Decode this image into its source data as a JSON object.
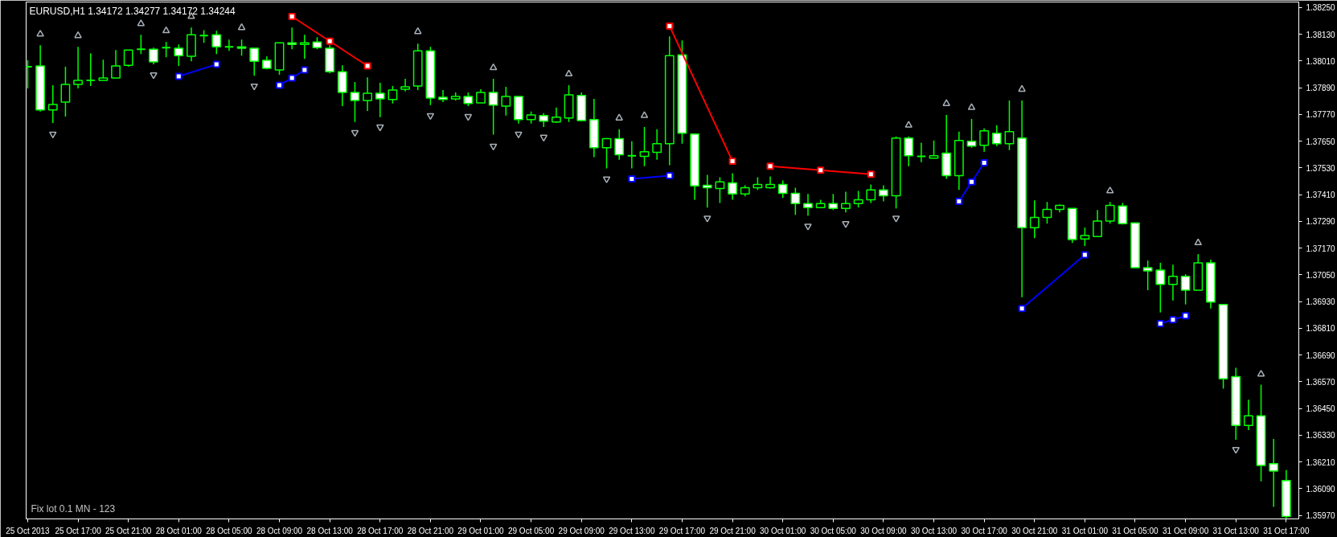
{
  "chart_data": {
    "type": "candlestick",
    "title": "EURUSD,H1  1.34172 1.34277 1.34172 1.34244",
    "annotations": [
      "Fix lot 0.1 MN - 123"
    ],
    "categories": [
      "25 Oct 2013",
      null,
      null,
      null,
      "25 Oct 17:00",
      null,
      null,
      null,
      "25 Oct 21:00",
      null,
      null,
      null,
      "28 Oct 01:00",
      null,
      null,
      null,
      "28 Oct 05:00",
      null,
      null,
      null,
      "28 Oct 09:00",
      null,
      null,
      null,
      "28 Oct 13:00",
      null,
      null,
      null,
      "28 Oct 17:00",
      null,
      null,
      null,
      "28 Oct 21:00",
      null,
      null,
      null,
      "29 Oct 01:00",
      null,
      null,
      null,
      "29 Oct 05:00",
      null,
      null,
      null,
      "29 Oct 09:00",
      null,
      null,
      null,
      "29 Oct 13:00",
      null,
      null,
      null,
      "29 Oct 17:00",
      null,
      null,
      null,
      "29 Oct 21:00",
      null,
      null,
      null,
      "30 Oct 01:00",
      null,
      null,
      null,
      "30 Oct 05:00",
      null,
      null,
      null,
      "30 Oct 09:00",
      null,
      null,
      null,
      "30 Oct 13:00",
      null,
      null,
      null,
      "30 Oct 17:00",
      null,
      null,
      null,
      "30 Oct 21:00",
      null,
      null,
      null,
      "31 Oct 01:00",
      null,
      null,
      null,
      "31 Oct 05:00",
      null,
      null,
      null,
      "31 Oct 09:00",
      null,
      null,
      null,
      "31 Oct 13:00",
      null,
      null,
      null,
      "31 Oct 17:00"
    ],
    "ylim": [
      1.35954,
      1.38275
    ],
    "yticks": [
      {
        "value": 1.3825,
        "label": "1.38250"
      },
      {
        "value": 1.3813,
        "label": "1.38130"
      },
      {
        "value": 1.3801,
        "label": "1.38010"
      },
      {
        "value": 1.3789,
        "label": "1.37890"
      },
      {
        "value": 1.3777,
        "label": "1.37770"
      },
      {
        "value": 1.3765,
        "label": "1.37650"
      },
      {
        "value": 1.3753,
        "label": "1.37530"
      },
      {
        "value": 1.3741,
        "label": "1.37410"
      },
      {
        "value": 1.3729,
        "label": "1.37290"
      },
      {
        "value": 1.3717,
        "label": "1.37170"
      },
      {
        "value": 1.3705,
        "label": "1.37050"
      },
      {
        "value": 1.3693,
        "label": "1.36930"
      },
      {
        "value": 1.3681,
        "label": "1.36810"
      },
      {
        "value": 1.3669,
        "label": "1.36690"
      },
      {
        "value": 1.3657,
        "label": "1.36570"
      },
      {
        "value": 1.3645,
        "label": "1.36450"
      },
      {
        "value": 1.3633,
        "label": "1.36330"
      },
      {
        "value": 1.3621,
        "label": "1.36210"
      },
      {
        "value": 1.3609,
        "label": "1.36090"
      },
      {
        "value": 1.3597,
        "label": "1.35970"
      }
    ],
    "series": [
      {
        "color": "#00ff00",
        "ohlc": [
          [
            1.37984,
            1.38013,
            1.37887,
            1.37984
          ],
          [
            1.37988,
            1.38081,
            1.37783,
            1.3779
          ],
          [
            1.3779,
            1.37901,
            1.37732,
            1.37815
          ],
          [
            1.37826,
            1.37984,
            1.37761,
            1.37905
          ],
          [
            1.37905,
            1.38074,
            1.37887,
            1.37923
          ],
          [
            1.37923,
            1.38045,
            1.37898,
            1.37923
          ],
          [
            1.37923,
            1.38016,
            1.37923,
            1.37934
          ],
          [
            1.37934,
            1.38059,
            1.37934,
            1.37988
          ],
          [
            1.37991,
            1.38059,
            1.37984,
            1.38059
          ],
          [
            1.38063,
            1.38128,
            1.38041,
            1.38063
          ],
          [
            1.38063,
            1.3807,
            1.37995,
            1.38006
          ],
          [
            1.3807,
            1.38095,
            1.38027,
            1.3807
          ],
          [
            1.38067,
            1.38085,
            1.37988,
            1.38034
          ],
          [
            1.38031,
            1.3816,
            1.38009,
            1.38128
          ],
          [
            1.38124,
            1.38149,
            1.38092,
            1.38124
          ],
          [
            1.38128,
            1.38146,
            1.38041,
            1.38074
          ],
          [
            1.38074,
            1.38106,
            1.38056,
            1.38074
          ],
          [
            1.38074,
            1.38106,
            1.38034,
            1.38067
          ],
          [
            1.38067,
            1.38067,
            1.37944,
            1.38009
          ],
          [
            1.38013,
            1.38031,
            1.37973,
            1.37977
          ],
          [
            1.3797,
            1.38092,
            1.37948,
            1.38092
          ],
          [
            1.38092,
            1.3816,
            1.38063,
            1.38085
          ],
          [
            1.38085,
            1.38128,
            1.3802,
            1.38092
          ],
          [
            1.38095,
            1.38117,
            1.38063,
            1.3807
          ],
          [
            1.38067,
            1.38081,
            1.37955,
            1.37962
          ],
          [
            1.37962,
            1.37991,
            1.37808,
            1.37869
          ],
          [
            1.37869,
            1.37916,
            1.37736,
            1.37833
          ],
          [
            1.37833,
            1.37937,
            1.37786,
            1.37865
          ],
          [
            1.37865,
            1.37912,
            1.37758,
            1.3784
          ],
          [
            1.37837,
            1.37898,
            1.37819,
            1.3788
          ],
          [
            1.37883,
            1.3793,
            1.37873,
            1.37894
          ],
          [
            1.37898,
            1.38088,
            1.3788,
            1.38056
          ],
          [
            1.38056,
            1.38074,
            1.37812,
            1.37844
          ],
          [
            1.37847,
            1.3788,
            1.37826,
            1.37837
          ],
          [
            1.3784,
            1.37869,
            1.37833,
            1.37851
          ],
          [
            1.37851,
            1.37869,
            1.37808,
            1.37819
          ],
          [
            1.37822,
            1.37883,
            1.37822,
            1.37869
          ],
          [
            1.37869,
            1.3793,
            1.37679,
            1.37812
          ],
          [
            1.37808,
            1.37894,
            1.37765,
            1.37851
          ],
          [
            1.37851,
            1.37851,
            1.37729,
            1.37747
          ],
          [
            1.37747,
            1.37783,
            1.37729,
            1.37768
          ],
          [
            1.37765,
            1.37776,
            1.37714,
            1.3774
          ],
          [
            1.37736,
            1.37801,
            1.37732,
            1.37758
          ],
          [
            1.37754,
            1.37901,
            1.37736,
            1.37858
          ],
          [
            1.37855,
            1.37869,
            1.3774,
            1.37743
          ],
          [
            1.37747,
            1.3784,
            1.37578,
            1.37621
          ],
          [
            1.37621,
            1.37664,
            1.37528,
            1.37661
          ],
          [
            1.37661,
            1.37704,
            1.37567,
            1.37589
          ],
          [
            1.37585,
            1.3765,
            1.37528,
            1.37585
          ],
          [
            1.37582,
            1.37714,
            1.37538,
            1.37603
          ],
          [
            1.376,
            1.37704,
            1.37567,
            1.37639
          ],
          [
            1.37639,
            1.38121,
            1.37542,
            1.38034
          ],
          [
            1.38038,
            1.38103,
            1.37639,
            1.37686
          ],
          [
            1.37682,
            1.37686,
            1.37387,
            1.37449
          ],
          [
            1.37452,
            1.37499,
            1.37352,
            1.37441
          ],
          [
            1.37438,
            1.37488,
            1.37373,
            1.37467
          ],
          [
            1.37463,
            1.37506,
            1.37387,
            1.37413
          ],
          [
            1.37413,
            1.37452,
            1.37402,
            1.37441
          ],
          [
            1.37441,
            1.37488,
            1.37431,
            1.37456
          ],
          [
            1.37441,
            1.37492,
            1.37438,
            1.37456
          ],
          [
            1.37456,
            1.37474,
            1.37395,
            1.37416
          ],
          [
            1.37416,
            1.37441,
            1.37319,
            1.3737
          ],
          [
            1.3737,
            1.37413,
            1.37316,
            1.37352
          ],
          [
            1.37352,
            1.37387,
            1.37352,
            1.3737
          ],
          [
            1.3737,
            1.37413,
            1.37341,
            1.37348
          ],
          [
            1.37348,
            1.37423,
            1.3733,
            1.3737
          ],
          [
            1.3737,
            1.37427,
            1.37352,
            1.37387
          ],
          [
            1.37387,
            1.37456,
            1.37373,
            1.37431
          ],
          [
            1.37431,
            1.37452,
            1.3738,
            1.37405
          ],
          [
            1.37405,
            1.37671,
            1.37348,
            1.37664
          ],
          [
            1.37664,
            1.37671,
            1.37538,
            1.37585
          ],
          [
            1.37582,
            1.37643,
            1.37556,
            1.37582
          ],
          [
            1.37574,
            1.37653,
            1.37574,
            1.37585
          ],
          [
            1.37596,
            1.37768,
            1.37481,
            1.37495
          ],
          [
            1.37495,
            1.37693,
            1.37431,
            1.37653
          ],
          [
            1.3765,
            1.3775,
            1.37621,
            1.37628
          ],
          [
            1.37632,
            1.37707,
            1.37603,
            1.37697
          ],
          [
            1.37686,
            1.37722,
            1.37628,
            1.37639
          ],
          [
            1.37639,
            1.37833,
            1.3761,
            1.37693
          ],
          [
            1.37664,
            1.37833,
            1.36949,
            1.37262
          ],
          [
            1.37262,
            1.37384,
            1.37215,
            1.37308
          ],
          [
            1.37308,
            1.37377,
            1.3728,
            1.37344
          ],
          [
            1.37344,
            1.37366,
            1.3733,
            1.37362
          ],
          [
            1.37348,
            1.37348,
            1.37193,
            1.37208
          ],
          [
            1.37211,
            1.37262,
            1.37179,
            1.37226
          ],
          [
            1.37222,
            1.37341,
            1.37222,
            1.37291
          ],
          [
            1.37291,
            1.37377,
            1.3728,
            1.37362
          ],
          [
            1.37359,
            1.37373,
            1.37276,
            1.3728
          ],
          [
            1.37283,
            1.37283,
            1.37082,
            1.37082
          ],
          [
            1.37082,
            1.37114,
            1.36981,
            1.37068
          ],
          [
            1.37071,
            1.37104,
            1.36881,
            1.37007
          ],
          [
            1.37007,
            1.37096,
            1.36935,
            1.37043
          ],
          [
            1.37043,
            1.37053,
            1.36917,
            1.36981
          ],
          [
            1.36981,
            1.37143,
            1.36981,
            1.37104
          ],
          [
            1.37104,
            1.37118,
            1.36899,
            1.36928
          ],
          [
            1.36917,
            1.36917,
            1.36539,
            1.36583
          ],
          [
            1.36593,
            1.36633,
            1.3631,
            1.36374
          ],
          [
            1.36374,
            1.36489,
            1.36353,
            1.36417
          ],
          [
            1.36417,
            1.36557,
            1.36123,
            1.36194
          ],
          [
            1.36202,
            1.36313,
            1.36008,
            1.36169
          ],
          [
            1.36126,
            1.36173,
            1.35957,
            1.35965
          ]
        ]
      },
      {
        "type": "line",
        "color": "#ff0000",
        "marker": "square",
        "values": [
          null,
          null,
          null,
          null,
          null,
          null,
          null,
          null,
          null,
          null,
          null,
          null,
          null,
          null,
          null,
          null,
          null,
          null,
          null,
          null,
          null,
          1.3821,
          null,
          null,
          1.38099,
          null,
          null,
          1.37988,
          null,
          null,
          null,
          null,
          null,
          null,
          null,
          null,
          null,
          null,
          null,
          null,
          null,
          null,
          null,
          null,
          null,
          null,
          null,
          null,
          null,
          null,
          null,
          null,
          null,
          null,
          null,
          null,
          null,
          null,
          null,
          null,
          null,
          null,
          null,
          null,
          null,
          null,
          null,
          null,
          null,
          null,
          null,
          null,
          null,
          null,
          null,
          null,
          null,
          null,
          null,
          null,
          null,
          null,
          null,
          null,
          null,
          null,
          null,
          null,
          null,
          null,
          null,
          null,
          null,
          null,
          null,
          null,
          null,
          null,
          null,
          null,
          null
        ]
      },
      {
        "type": "line",
        "color": "#ff0000",
        "marker": "square",
        "values": [
          null,
          null,
          null,
          null,
          null,
          null,
          null,
          null,
          null,
          null,
          null,
          null,
          null,
          null,
          null,
          null,
          null,
          null,
          null,
          null,
          null,
          null,
          null,
          null,
          null,
          null,
          null,
          null,
          null,
          null,
          null,
          null,
          null,
          null,
          null,
          null,
          null,
          null,
          null,
          null,
          null,
          null,
          null,
          null,
          null,
          null,
          null,
          null,
          null,
          null,
          null,
          1.38167,
          null,
          null,
          null,
          null,
          1.3756,
          null,
          null,
          null,
          null,
          null,
          null,
          null,
          null,
          null,
          null,
          null,
          null,
          null,
          null,
          null,
          null,
          null,
          null,
          null,
          null,
          null,
          null,
          null,
          null,
          null,
          null,
          null,
          null,
          null,
          null,
          null,
          null,
          null,
          null,
          null,
          null,
          null,
          null,
          null,
          null,
          null,
          null,
          null,
          null
        ]
      },
      {
        "type": "line",
        "color": "#ff0000",
        "marker": "square",
        "values": [
          null,
          null,
          null,
          null,
          null,
          null,
          null,
          null,
          null,
          null,
          null,
          null,
          null,
          null,
          null,
          null,
          null,
          null,
          null,
          null,
          null,
          null,
          null,
          null,
          null,
          null,
          null,
          null,
          null,
          null,
          null,
          null,
          null,
          null,
          null,
          null,
          null,
          null,
          null,
          null,
          null,
          null,
          null,
          null,
          null,
          null,
          null,
          null,
          null,
          null,
          null,
          null,
          null,
          null,
          null,
          null,
          null,
          null,
          null,
          1.37538,
          null,
          null,
          null,
          1.3752,
          null,
          null,
          null,
          1.37502,
          null,
          null,
          null,
          null,
          null,
          null,
          null,
          null,
          null,
          null,
          null,
          null,
          null,
          null,
          null,
          null,
          null,
          null,
          null,
          null,
          null,
          null,
          null,
          null,
          null,
          null,
          null,
          null,
          null,
          null,
          null,
          null,
          null
        ]
      },
      {
        "type": "line",
        "color": "#0000ff",
        "marker": "square",
        "values": [
          null,
          null,
          null,
          null,
          null,
          null,
          null,
          null,
          null,
          null,
          null,
          null,
          1.37941,
          null,
          null,
          1.37995,
          null,
          null,
          null,
          null,
          null,
          null,
          null,
          null,
          null,
          null,
          null,
          null,
          null,
          null,
          null,
          null,
          null,
          null,
          null,
          null,
          null,
          null,
          null,
          null,
          null,
          null,
          null,
          null,
          null,
          null,
          null,
          null,
          null,
          null,
          null,
          null,
          null,
          null,
          null,
          null,
          null,
          null,
          null,
          null,
          null,
          null,
          null,
          null,
          null,
          null,
          null,
          null,
          null,
          null,
          null,
          null,
          null,
          null,
          null,
          null,
          null,
          null,
          null,
          null,
          null,
          null,
          null,
          null,
          null,
          null,
          null,
          null,
          null,
          null,
          null,
          null,
          null,
          null,
          null,
          null,
          null,
          null,
          null,
          null,
          null
        ]
      },
      {
        "type": "line",
        "color": "#0000ff",
        "marker": "square",
        "values": [
          null,
          null,
          null,
          null,
          null,
          null,
          null,
          null,
          null,
          null,
          null,
          null,
          null,
          null,
          null,
          null,
          null,
          null,
          null,
          null,
          1.37901,
          1.37934,
          1.3797,
          null,
          null,
          null,
          null,
          null,
          null,
          null,
          null,
          null,
          null,
          null,
          null,
          null,
          null,
          null,
          null,
          null,
          null,
          null,
          null,
          null,
          null,
          null,
          null,
          null,
          null,
          null,
          null,
          null,
          null,
          null,
          null,
          null,
          null,
          null,
          null,
          null,
          null,
          null,
          null,
          null,
          null,
          null,
          null,
          null,
          null,
          null,
          null,
          null,
          null,
          null,
          null,
          null,
          null,
          null,
          null,
          null,
          null,
          null,
          null,
          null,
          null,
          null,
          null,
          null,
          null,
          null,
          null,
          null,
          null,
          null,
          null,
          null,
          null,
          null,
          null,
          null,
          null
        ]
      },
      {
        "type": "line",
        "color": "#0000ff",
        "marker": "square",
        "values": [
          null,
          null,
          null,
          null,
          null,
          null,
          null,
          null,
          null,
          null,
          null,
          null,
          null,
          null,
          null,
          null,
          null,
          null,
          null,
          null,
          null,
          null,
          null,
          null,
          null,
          null,
          null,
          null,
          null,
          null,
          null,
          null,
          null,
          null,
          null,
          null,
          null,
          null,
          null,
          null,
          null,
          null,
          null,
          null,
          null,
          null,
          null,
          null,
          1.37481,
          null,
          null,
          1.37495,
          null,
          null,
          null,
          null,
          null,
          null,
          null,
          null,
          null,
          null,
          null,
          null,
          null,
          null,
          null,
          null,
          null,
          null,
          null,
          null,
          null,
          null,
          null,
          null,
          null,
          null,
          null,
          null,
          null,
          null,
          null,
          null,
          null,
          null,
          null,
          null,
          null,
          null,
          null,
          null,
          null,
          null,
          null,
          null,
          null,
          null,
          null,
          null,
          null
        ]
      },
      {
        "type": "line",
        "color": "#0000ff",
        "marker": "square",
        "values": [
          null,
          null,
          null,
          null,
          null,
          null,
          null,
          null,
          null,
          null,
          null,
          null,
          null,
          null,
          null,
          null,
          null,
          null,
          null,
          null,
          null,
          null,
          null,
          null,
          null,
          null,
          null,
          null,
          null,
          null,
          null,
          null,
          null,
          null,
          null,
          null,
          null,
          null,
          null,
          null,
          null,
          null,
          null,
          null,
          null,
          null,
          null,
          null,
          null,
          null,
          null,
          null,
          null,
          null,
          null,
          null,
          null,
          null,
          null,
          null,
          null,
          null,
          null,
          null,
          null,
          null,
          null,
          null,
          null,
          null,
          null,
          null,
          null,
          null,
          1.3738,
          1.37467,
          1.37553,
          null,
          null,
          null,
          null,
          null,
          null,
          null,
          null,
          null,
          null,
          null,
          null,
          null,
          null,
          null,
          null,
          null,
          null,
          null,
          null,
          null,
          null,
          null,
          null
        ]
      },
      {
        "type": "line",
        "color": "#0000ff",
        "marker": "square",
        "values": [
          null,
          null,
          null,
          null,
          null,
          null,
          null,
          null,
          null,
          null,
          null,
          null,
          null,
          null,
          null,
          null,
          null,
          null,
          null,
          null,
          null,
          null,
          null,
          null,
          null,
          null,
          null,
          null,
          null,
          null,
          null,
          null,
          null,
          null,
          null,
          null,
          null,
          null,
          null,
          null,
          null,
          null,
          null,
          null,
          null,
          null,
          null,
          null,
          null,
          null,
          null,
          null,
          null,
          null,
          null,
          null,
          null,
          null,
          null,
          null,
          null,
          null,
          null,
          null,
          null,
          null,
          null,
          null,
          null,
          null,
          null,
          null,
          null,
          null,
          null,
          null,
          null,
          null,
          null,
          1.36899,
          null,
          null,
          null,
          null,
          1.3714,
          null,
          null,
          null,
          null,
          null,
          null,
          null,
          null,
          null,
          null,
          null,
          null,
          null,
          null,
          null,
          null
        ]
      },
      {
        "type": "line",
        "color": "#0000ff",
        "marker": "square",
        "values": [
          null,
          null,
          null,
          null,
          null,
          null,
          null,
          null,
          null,
          null,
          null,
          null,
          null,
          null,
          null,
          null,
          null,
          null,
          null,
          null,
          null,
          null,
          null,
          null,
          null,
          null,
          null,
          null,
          null,
          null,
          null,
          null,
          null,
          null,
          null,
          null,
          null,
          null,
          null,
          null,
          null,
          null,
          null,
          null,
          null,
          null,
          null,
          null,
          null,
          null,
          null,
          null,
          null,
          null,
          null,
          null,
          null,
          null,
          null,
          null,
          null,
          null,
          null,
          null,
          null,
          null,
          null,
          null,
          null,
          null,
          null,
          null,
          null,
          null,
          null,
          null,
          null,
          null,
          null,
          null,
          null,
          null,
          null,
          null,
          null,
          null,
          null,
          null,
          null,
          null,
          1.36831,
          1.36848,
          1.36866,
          null,
          null,
          null,
          null,
          null,
          null,
          null,
          null
        ]
      },
      {
        "type": "scatter",
        "color": "#a8b0b8",
        "marker": "triangle",
        "values": [
          null,
          1.38131,
          null,
          null,
          1.38124,
          null,
          null,
          null,
          null,
          1.38178,
          null,
          1.38146,
          null,
          1.3821,
          null,
          null,
          null,
          1.3816,
          null,
          null,
          null,
          null,
          null,
          null,
          null,
          null,
          null,
          null,
          null,
          null,
          null,
          1.38142,
          null,
          null,
          null,
          null,
          null,
          1.3798,
          null,
          null,
          null,
          null,
          null,
          1.37952,
          null,
          null,
          null,
          1.37754,
          null,
          1.37765,
          null,
          null,
          null,
          null,
          null,
          null,
          null,
          null,
          null,
          null,
          null,
          null,
          null,
          null,
          null,
          null,
          null,
          null,
          null,
          null,
          1.37722,
          null,
          null,
          1.37819,
          null,
          1.37801,
          null,
          null,
          null,
          1.37883,
          null,
          null,
          null,
          null,
          null,
          null,
          1.37427,
          null,
          null,
          null,
          null,
          null,
          null,
          1.37194,
          null,
          null,
          null,
          null,
          1.36604,
          null,
          null
        ]
      },
      {
        "type": "scatter",
        "color": "#a8b0b8",
        "values": [
          null,
          null,
          1.37682,
          null,
          null,
          null,
          null,
          null,
          null,
          null,
          1.37948,
          null,
          null,
          null,
          null,
          null,
          null,
          null,
          1.37898,
          null,
          null,
          null,
          null,
          null,
          null,
          null,
          1.37689,
          null,
          1.37714,
          null,
          null,
          null,
          1.37765,
          null,
          null,
          1.37761,
          null,
          1.37628,
          null,
          1.37682,
          null,
          1.37668,
          null,
          null,
          null,
          null,
          1.37481,
          null,
          null,
          null,
          null,
          null,
          null,
          null,
          1.37305,
          null,
          null,
          null,
          null,
          null,
          null,
          null,
          1.37269,
          null,
          null,
          1.3728,
          null,
          null,
          null,
          1.37305,
          null,
          null,
          null,
          null,
          null,
          null,
          null,
          null,
          null,
          null,
          null,
          null,
          null,
          null,
          null,
          null,
          null,
          null,
          null,
          null,
          null,
          null,
          null,
          null,
          null,
          null,
          1.36266,
          null,
          null,
          null,
          null
        ]
      }
    ]
  }
}
